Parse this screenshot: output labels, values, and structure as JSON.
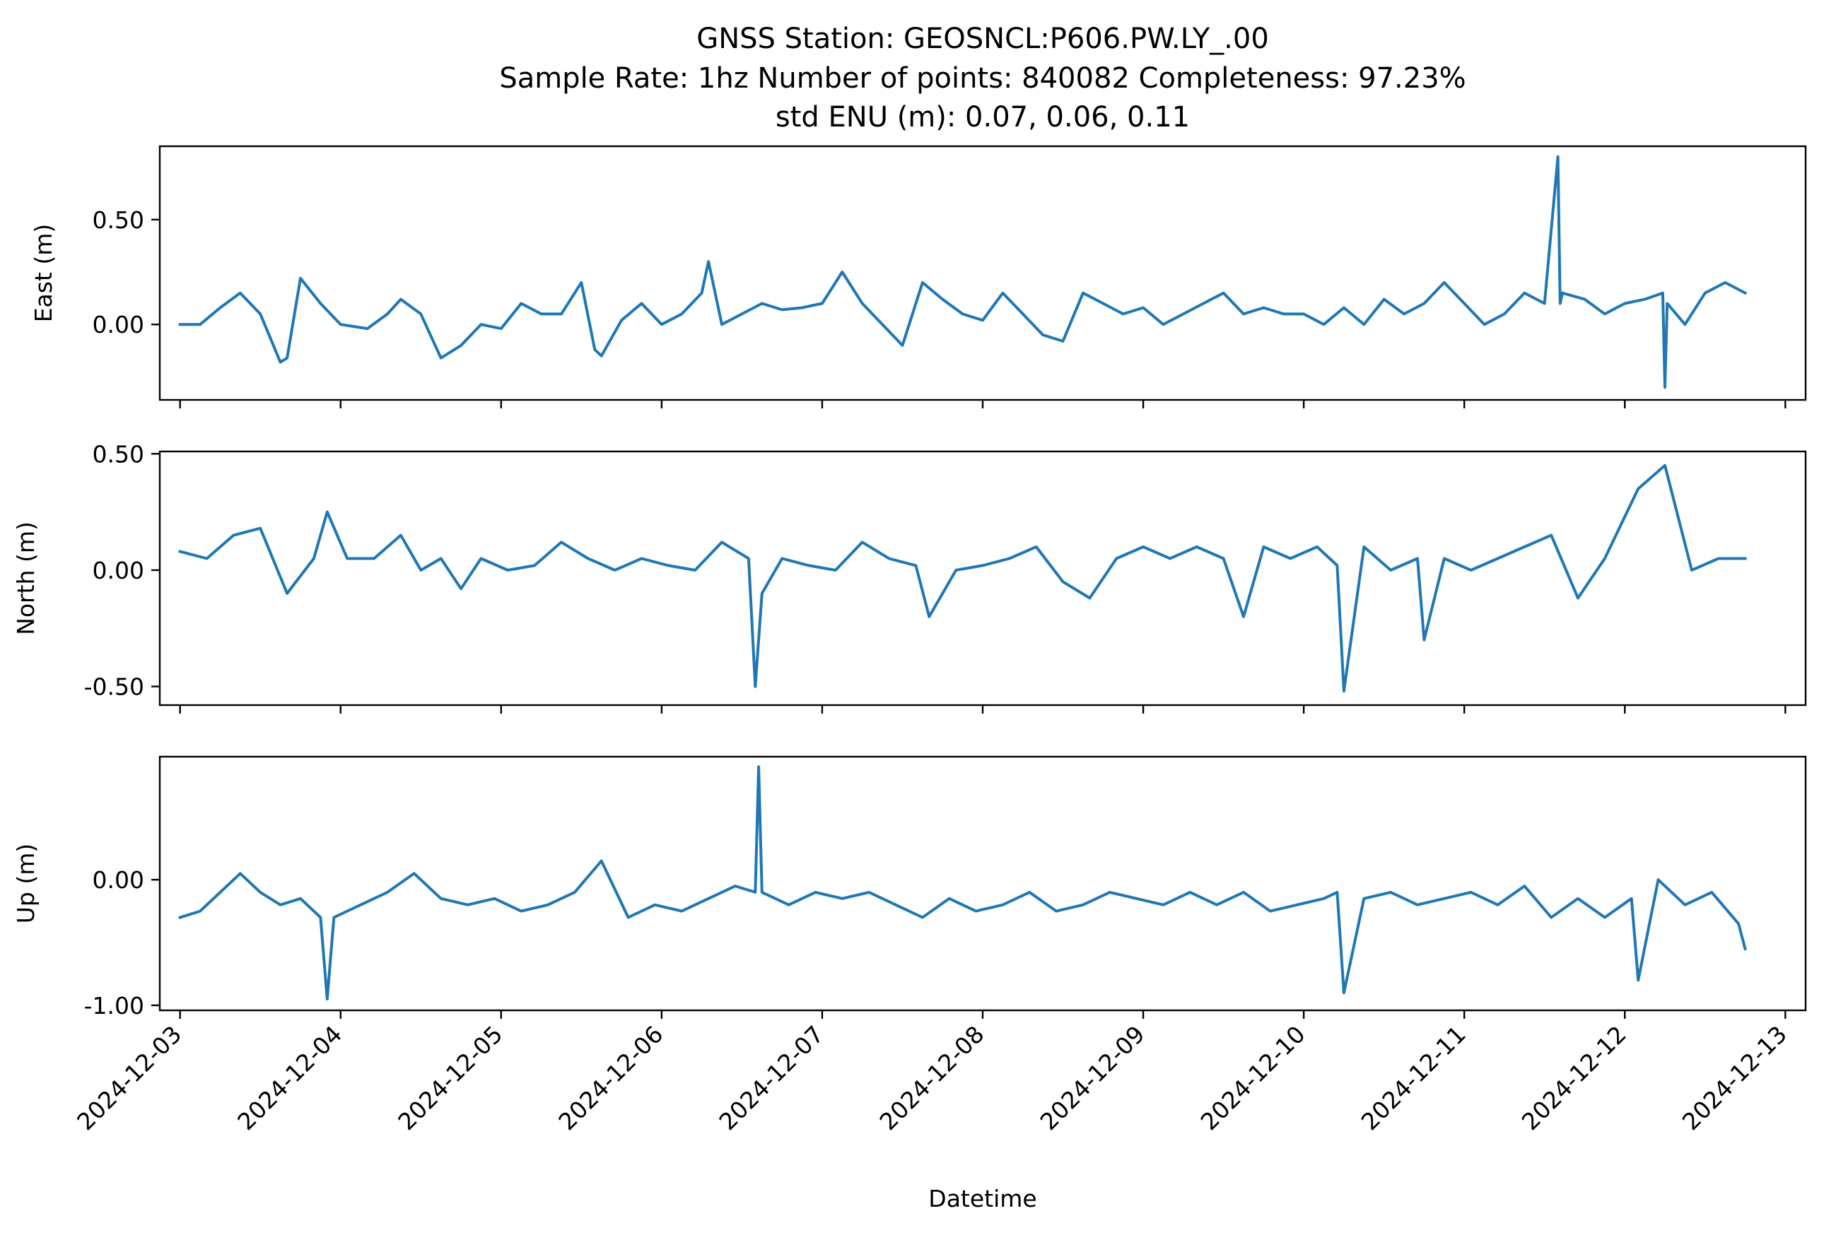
{
  "title_lines": [
    "GNSS Station: GEOSNCL:P606.PW.LY_.00",
    "Sample Rate: 1hz   Number of points: 840082    Completeness:  97.23%",
    "std ENU (m):  0.07, 0.06, 0.11"
  ],
  "xlabel": "Datetime",
  "colors": {
    "series": "#1f77b4",
    "axes": "#000000"
  },
  "chart_data": [
    {
      "type": "line",
      "panel": "east",
      "ylabel": "East (m)",
      "xlim": [
        "2024-12-02T20:58",
        "2024-12-13T03:02"
      ],
      "ylim": [
        -0.36,
        0.85
      ],
      "yticks": [
        0.0,
        0.5
      ],
      "ytick_labels": [
        "0.00",
        "0.50"
      ],
      "show_xtick_labels": false,
      "series": [
        {
          "x": [
            "2024-12-03T00:00",
            "2024-12-03T03:00",
            "2024-12-03T06:00",
            "2024-12-03T09:00",
            "2024-12-03T12:00",
            "2024-12-03T15:00",
            "2024-12-03T16:00",
            "2024-12-03T18:00",
            "2024-12-03T21:00",
            "2024-12-04T00:00",
            "2024-12-04T04:00",
            "2024-12-04T07:00",
            "2024-12-04T09:00",
            "2024-12-04T12:00",
            "2024-12-04T15:00",
            "2024-12-04T18:00",
            "2024-12-04T21:00",
            "2024-12-05T00:00",
            "2024-12-05T03:00",
            "2024-12-05T06:00",
            "2024-12-05T09:00",
            "2024-12-05T12:00",
            "2024-12-05T14:00",
            "2024-12-05T15:00",
            "2024-12-05T18:00",
            "2024-12-05T21:00",
            "2024-12-06T00:00",
            "2024-12-06T03:00",
            "2024-12-06T06:00",
            "2024-12-06T07:00",
            "2024-12-06T09:00",
            "2024-12-06T12:00",
            "2024-12-06T15:00",
            "2024-12-06T18:00",
            "2024-12-06T21:00",
            "2024-12-07T00:00",
            "2024-12-07T03:00",
            "2024-12-07T06:00",
            "2024-12-07T09:00",
            "2024-12-07T12:00",
            "2024-12-07T15:00",
            "2024-12-07T18:00",
            "2024-12-07T21:00",
            "2024-12-08T00:00",
            "2024-12-08T03:00",
            "2024-12-08T06:00",
            "2024-12-08T09:00",
            "2024-12-08T12:00",
            "2024-12-08T15:00",
            "2024-12-08T18:00",
            "2024-12-08T21:00",
            "2024-12-09T00:00",
            "2024-12-09T03:00",
            "2024-12-09T06:00",
            "2024-12-09T09:00",
            "2024-12-09T12:00",
            "2024-12-09T15:00",
            "2024-12-09T18:00",
            "2024-12-09T21:00",
            "2024-12-10T00:00",
            "2024-12-10T03:00",
            "2024-12-10T06:00",
            "2024-12-10T09:00",
            "2024-12-10T12:00",
            "2024-12-10T15:00",
            "2024-12-10T18:00",
            "2024-12-10T21:00",
            "2024-12-11T00:00",
            "2024-12-11T03:00",
            "2024-12-11T06:00",
            "2024-12-11T09:00",
            "2024-12-11T12:00",
            "2024-12-11T14:00",
            "2024-12-11T14:20",
            "2024-12-11T14:40",
            "2024-12-11T18:00",
            "2024-12-11T21:00",
            "2024-12-12T00:00",
            "2024-12-12T03:00",
            "2024-12-12T05:40",
            "2024-12-12T06:00",
            "2024-12-12T06:20",
            "2024-12-12T09:00",
            "2024-12-12T12:00",
            "2024-12-12T15:00",
            "2024-12-12T18:00"
          ],
          "y": [
            0.0,
            0.0,
            0.08,
            0.15,
            0.05,
            -0.18,
            -0.16,
            0.22,
            0.1,
            0.0,
            -0.02,
            0.05,
            0.12,
            0.05,
            -0.16,
            -0.1,
            0.0,
            -0.02,
            0.1,
            0.05,
            0.05,
            0.2,
            -0.12,
            -0.15,
            0.02,
            0.1,
            0.0,
            0.05,
            0.15,
            0.3,
            0.0,
            0.05,
            0.1,
            0.07,
            0.08,
            0.1,
            0.25,
            0.1,
            0.0,
            -0.1,
            0.2,
            0.12,
            0.05,
            0.02,
            0.15,
            0.05,
            -0.05,
            -0.08,
            0.15,
            0.1,
            0.05,
            0.08,
            0.0,
            0.05,
            0.1,
            0.15,
            0.05,
            0.08,
            0.05,
            0.05,
            0.0,
            0.08,
            0.0,
            0.12,
            0.05,
            0.1,
            0.2,
            0.1,
            0.0,
            0.05,
            0.15,
            0.1,
            0.8,
            0.1,
            0.15,
            0.12,
            0.05,
            0.1,
            0.12,
            0.15,
            -0.3,
            0.1,
            0.0,
            0.15,
            0.2,
            0.15
          ]
        }
      ]
    },
    {
      "type": "line",
      "panel": "north",
      "ylabel": "North (m)",
      "xlim": [
        "2024-12-02T20:58",
        "2024-12-13T03:02"
      ],
      "ylim": [
        -0.58,
        0.51
      ],
      "yticks": [
        -0.5,
        0.0,
        0.5
      ],
      "ytick_labels": [
        "-0.50",
        "0.00",
        "0.50"
      ],
      "show_xtick_labels": false,
      "series": [
        {
          "x": [
            "2024-12-03T00:00",
            "2024-12-03T04:00",
            "2024-12-03T08:00",
            "2024-12-03T12:00",
            "2024-12-03T16:00",
            "2024-12-03T20:00",
            "2024-12-03T22:00",
            "2024-12-04T01:00",
            "2024-12-04T05:00",
            "2024-12-04T09:00",
            "2024-12-04T12:00",
            "2024-12-04T15:00",
            "2024-12-04T18:00",
            "2024-12-04T21:00",
            "2024-12-05T01:00",
            "2024-12-05T05:00",
            "2024-12-05T09:00",
            "2024-12-05T13:00",
            "2024-12-05T17:00",
            "2024-12-05T21:00",
            "2024-12-06T01:00",
            "2024-12-06T05:00",
            "2024-12-06T09:00",
            "2024-12-06T13:00",
            "2024-12-06T14:00",
            "2024-12-06T15:00",
            "2024-12-06T18:00",
            "2024-12-06T22:00",
            "2024-12-07T02:00",
            "2024-12-07T06:00",
            "2024-12-07T10:00",
            "2024-12-07T14:00",
            "2024-12-07T16:00",
            "2024-12-07T20:00",
            "2024-12-08T00:00",
            "2024-12-08T04:00",
            "2024-12-08T08:00",
            "2024-12-08T12:00",
            "2024-12-08T16:00",
            "2024-12-08T20:00",
            "2024-12-09T00:00",
            "2024-12-09T04:00",
            "2024-12-09T08:00",
            "2024-12-09T12:00",
            "2024-12-09T15:00",
            "2024-12-09T18:00",
            "2024-12-09T22:00",
            "2024-12-10T02:00",
            "2024-12-10T05:00",
            "2024-12-10T06:00",
            "2024-12-10T09:00",
            "2024-12-10T13:00",
            "2024-12-10T17:00",
            "2024-12-10T18:00",
            "2024-12-10T21:00",
            "2024-12-11T01:00",
            "2024-12-11T05:00",
            "2024-12-11T09:00",
            "2024-12-11T13:00",
            "2024-12-11T17:00",
            "2024-12-11T21:00",
            "2024-12-12T02:00",
            "2024-12-12T06:00",
            "2024-12-12T10:00",
            "2024-12-12T14:00",
            "2024-12-12T18:00"
          ],
          "y": [
            0.08,
            0.05,
            0.15,
            0.18,
            -0.1,
            0.05,
            0.25,
            0.05,
            0.05,
            0.15,
            0.0,
            0.05,
            -0.08,
            0.05,
            0.0,
            0.02,
            0.12,
            0.05,
            0.0,
            0.05,
            0.02,
            0.0,
            0.12,
            0.05,
            -0.5,
            -0.1,
            0.05,
            0.02,
            0.0,
            0.12,
            0.05,
            0.02,
            -0.2,
            0.0,
            0.02,
            0.05,
            0.1,
            -0.05,
            -0.12,
            0.05,
            0.1,
            0.05,
            0.1,
            0.05,
            -0.2,
            0.1,
            0.05,
            0.1,
            0.02,
            -0.52,
            0.1,
            0.0,
            0.05,
            -0.3,
            0.05,
            0.0,
            0.05,
            0.1,
            0.15,
            -0.12,
            0.05,
            0.35,
            0.45,
            0.0,
            0.05,
            0.05
          ]
        }
      ]
    },
    {
      "type": "line",
      "panel": "up",
      "ylabel": "Up (m)",
      "xlim": [
        "2024-12-02T20:58",
        "2024-12-13T03:02"
      ],
      "ylim": [
        -1.04,
        0.98
      ],
      "yticks": [
        -1.0,
        0.0
      ],
      "ytick_labels": [
        "-1.00",
        "0.00"
      ],
      "show_xtick_labels": true,
      "xticks": [
        "2024-12-03",
        "2024-12-04",
        "2024-12-05",
        "2024-12-06",
        "2024-12-07",
        "2024-12-08",
        "2024-12-09",
        "2024-12-10",
        "2024-12-11",
        "2024-12-12",
        "2024-12-13"
      ],
      "xtick_labels": [
        "2024-12-03",
        "2024-12-04",
        "2024-12-05",
        "2024-12-06",
        "2024-12-07",
        "2024-12-08",
        "2024-12-09",
        "2024-12-10",
        "2024-12-11",
        "2024-12-12",
        "2024-12-13"
      ],
      "series": [
        {
          "x": [
            "2024-12-03T00:00",
            "2024-12-03T03:00",
            "2024-12-03T06:00",
            "2024-12-03T09:00",
            "2024-12-03T12:00",
            "2024-12-03T15:00",
            "2024-12-03T18:00",
            "2024-12-03T21:00",
            "2024-12-03T22:00",
            "2024-12-03T23:00",
            "2024-12-04T03:00",
            "2024-12-04T07:00",
            "2024-12-04T11:00",
            "2024-12-04T15:00",
            "2024-12-04T19:00",
            "2024-12-04T23:00",
            "2024-12-05T03:00",
            "2024-12-05T07:00",
            "2024-12-05T11:00",
            "2024-12-05T15:00",
            "2024-12-05T19:00",
            "2024-12-05T23:00",
            "2024-12-06T03:00",
            "2024-12-06T07:00",
            "2024-12-06T11:00",
            "2024-12-06T14:00",
            "2024-12-06T14:30",
            "2024-12-06T15:00",
            "2024-12-06T19:00",
            "2024-12-06T23:00",
            "2024-12-07T03:00",
            "2024-12-07T07:00",
            "2024-12-07T11:00",
            "2024-12-07T15:00",
            "2024-12-07T19:00",
            "2024-12-07T23:00",
            "2024-12-08T03:00",
            "2024-12-08T07:00",
            "2024-12-08T11:00",
            "2024-12-08T15:00",
            "2024-12-08T19:00",
            "2024-12-08T23:00",
            "2024-12-09T03:00",
            "2024-12-09T07:00",
            "2024-12-09T11:00",
            "2024-12-09T15:00",
            "2024-12-09T19:00",
            "2024-12-09T23:00",
            "2024-12-10T03:00",
            "2024-12-10T05:00",
            "2024-12-10T06:00",
            "2024-12-10T09:00",
            "2024-12-10T13:00",
            "2024-12-10T17:00",
            "2024-12-10T21:00",
            "2024-12-11T01:00",
            "2024-12-11T05:00",
            "2024-12-11T09:00",
            "2024-12-11T13:00",
            "2024-12-11T17:00",
            "2024-12-11T21:00",
            "2024-12-12T01:00",
            "2024-12-12T02:00",
            "2024-12-12T05:00",
            "2024-12-12T09:00",
            "2024-12-12T13:00",
            "2024-12-12T17:00",
            "2024-12-12T18:00"
          ],
          "y": [
            -0.3,
            -0.25,
            -0.1,
            0.05,
            -0.1,
            -0.2,
            -0.15,
            -0.3,
            -0.95,
            -0.3,
            -0.2,
            -0.1,
            0.05,
            -0.15,
            -0.2,
            -0.15,
            -0.25,
            -0.2,
            -0.1,
            0.15,
            -0.3,
            -0.2,
            -0.25,
            -0.15,
            -0.05,
            -0.1,
            0.9,
            -0.1,
            -0.2,
            -0.1,
            -0.15,
            -0.1,
            -0.2,
            -0.3,
            -0.15,
            -0.25,
            -0.2,
            -0.1,
            -0.25,
            -0.2,
            -0.1,
            -0.15,
            -0.2,
            -0.1,
            -0.2,
            -0.1,
            -0.25,
            -0.2,
            -0.15,
            -0.1,
            -0.9,
            -0.15,
            -0.1,
            -0.2,
            -0.15,
            -0.1,
            -0.2,
            -0.05,
            -0.3,
            -0.15,
            -0.3,
            -0.15,
            -0.8,
            0.0,
            -0.2,
            -0.1,
            -0.35,
            -0.55
          ]
        }
      ]
    }
  ]
}
